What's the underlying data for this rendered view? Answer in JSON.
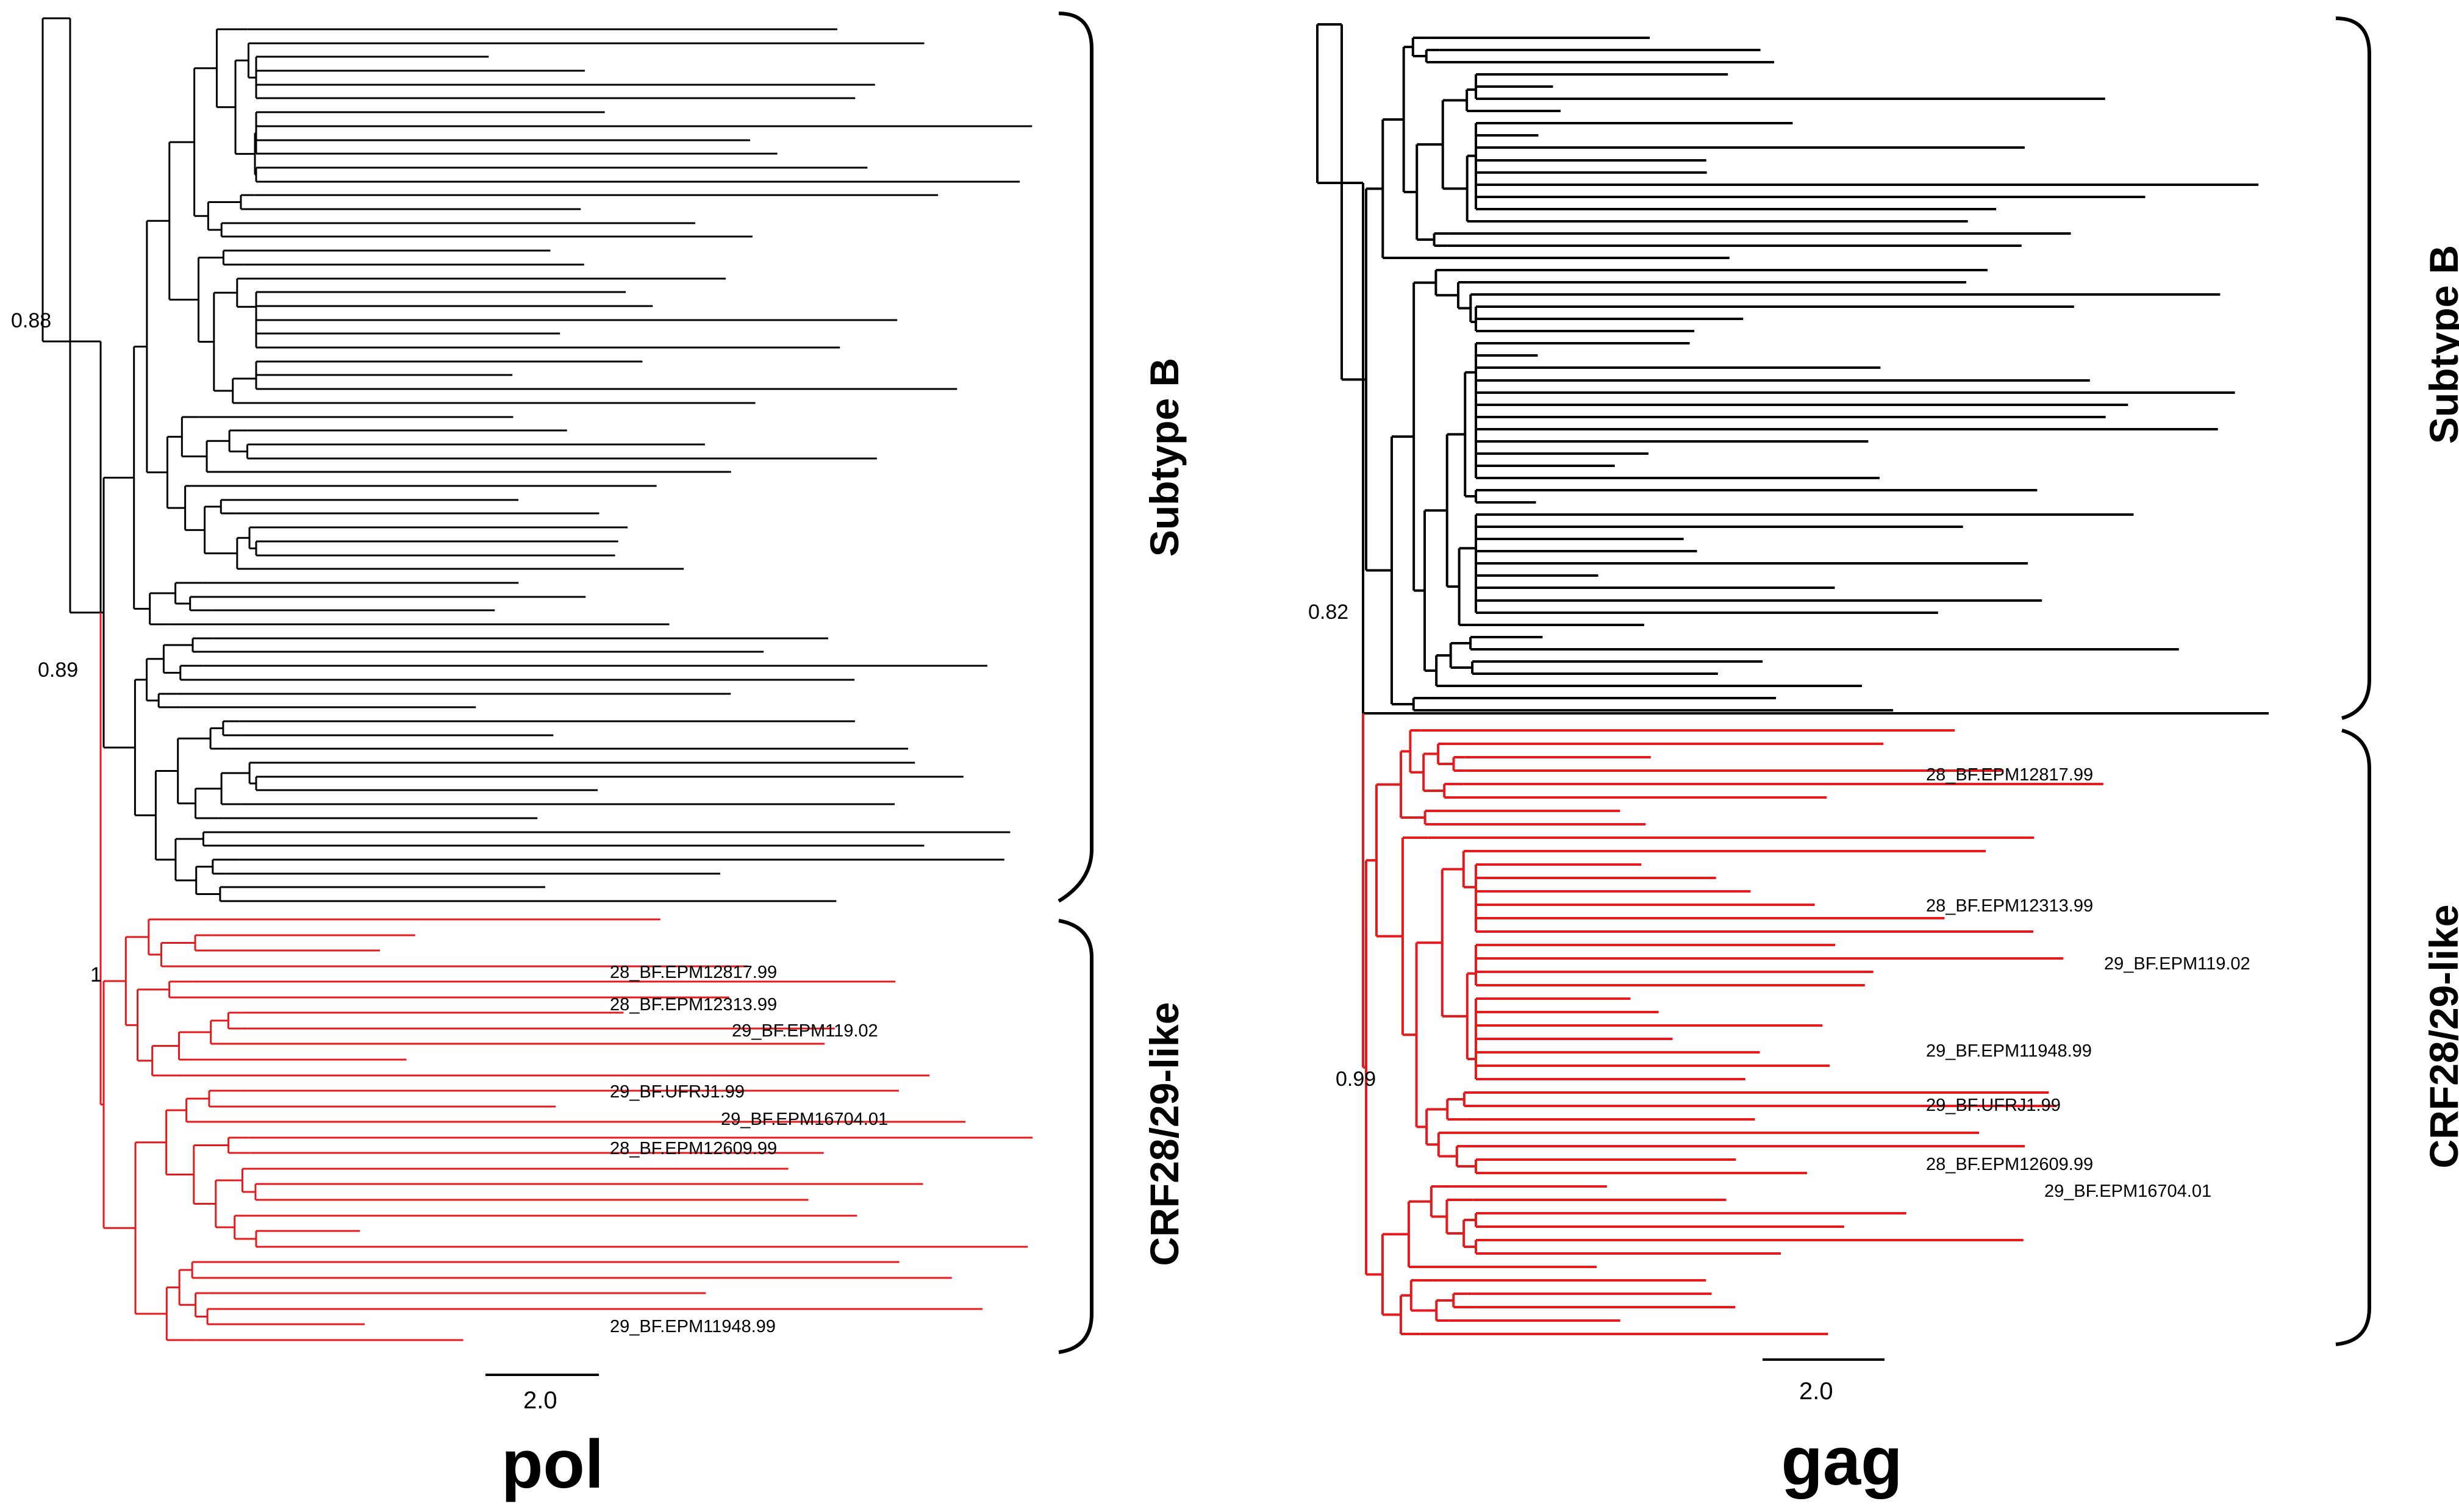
{
  "figure_colors": {
    "subtype_b": "#000000",
    "crf28_29": "#e41a1c"
  },
  "panels": [
    {
      "id": "pol",
      "title": "pol",
      "scale_bar_label": "2.0",
      "support_values": [
        "0.88",
        "0.89",
        "1"
      ],
      "clades": [
        {
          "label": "Subtype B",
          "color": "#000000"
        },
        {
          "label": "CRF28/29-like",
          "color": "#e41a1c"
        }
      ],
      "taxa": [
        "28_BF.EPM12817.99",
        "28_BF.EPM12313.99",
        "29_BF.EPM119.02",
        "29_BF.UFRJ1.99",
        "29_BF.EPM16704.01",
        "28_BF.EPM12609.99",
        "29_BF.EPM11948.99"
      ]
    },
    {
      "id": "gag",
      "title": "gag",
      "scale_bar_label": "2.0",
      "support_values": [
        "0.82",
        "0.99"
      ],
      "clades": [
        {
          "label": "Subtype B",
          "color": "#000000"
        },
        {
          "label": "CRF28/29-like",
          "color": "#e41a1c"
        }
      ],
      "taxa": [
        "28_BF.EPM12817.99",
        "28_BF.EPM12313.99",
        "29_BF.EPM119.02",
        "29_BF.EPM11948.99",
        "29_BF.UFRJ1.99",
        "28_BF.EPM12609.99",
        "29_BF.EPM16704.01"
      ]
    }
  ]
}
